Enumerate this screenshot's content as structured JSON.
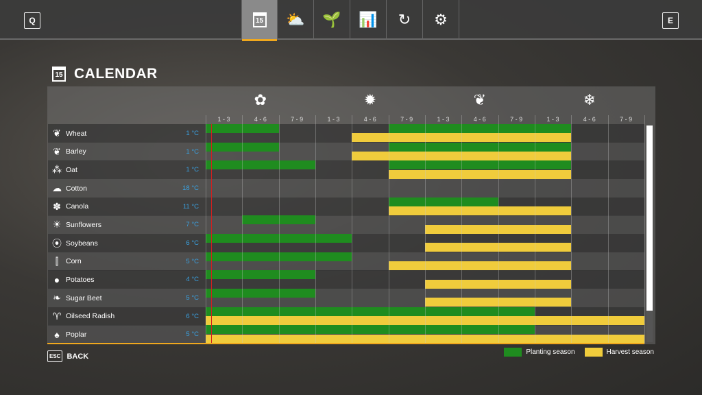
{
  "topbar": {
    "left_key": "Q",
    "right_key": "E",
    "tabs": [
      {
        "icon": "calendar-icon",
        "glyph": "15",
        "active": true
      },
      {
        "icon": "weather-icon",
        "glyph": "⛅"
      },
      {
        "icon": "plant-icon",
        "glyph": "🌱"
      },
      {
        "icon": "statistics-icon",
        "glyph": "📊"
      },
      {
        "icon": "crop-rotation-icon",
        "glyph": "↻"
      },
      {
        "icon": "settings-icon",
        "glyph": "⚙"
      }
    ]
  },
  "page": {
    "title": "CALENDAR",
    "calendar_icon_text": "15"
  },
  "seasons": [
    {
      "name": "spring-icon",
      "glyph": "✿"
    },
    {
      "name": "summer-icon",
      "glyph": "✹"
    },
    {
      "name": "autumn-icon",
      "glyph": "❦"
    },
    {
      "name": "winter-icon",
      "glyph": "❄"
    }
  ],
  "periods": [
    "1 - 3",
    "4 - 6",
    "7 - 9",
    "1 - 3",
    "4 - 6",
    "7 - 9",
    "1 - 3",
    "4 - 6",
    "7 - 9",
    "1 - 3",
    "4 - 6",
    "7 - 9"
  ],
  "colors": {
    "planting": "#1f8c1f",
    "harvest": "#f0cc3c",
    "accent": "#f0a81e",
    "temperature": "#3aa0e0",
    "current_time": "#d02020"
  },
  "chart_data": {
    "type": "bar",
    "note_units": "periods 1-12",
    "crops": [
      {
        "name": "Wheat",
        "icon": "wheat-icon",
        "glyph": "❦",
        "temp": "1 °C",
        "planting": [
          [
            1,
            2
          ],
          [
            6,
            10
          ]
        ],
        "harvest": [
          [
            5,
            10
          ]
        ]
      },
      {
        "name": "Barley",
        "icon": "barley-icon",
        "glyph": "❦",
        "temp": "1 °C",
        "planting": [
          [
            1,
            2
          ],
          [
            6,
            10
          ]
        ],
        "harvest": [
          [
            5,
            10
          ]
        ]
      },
      {
        "name": "Oat",
        "icon": "oat-icon",
        "glyph": "⁂",
        "temp": "1 °C",
        "planting": [
          [
            1,
            3
          ],
          [
            6,
            10
          ]
        ],
        "harvest": [
          [
            6,
            10
          ]
        ]
      },
      {
        "name": "Cotton",
        "icon": "cotton-icon",
        "glyph": "☁",
        "temp": "18 °C",
        "planting": [],
        "harvest": []
      },
      {
        "name": "Canola",
        "icon": "canola-icon",
        "glyph": "✽",
        "temp": "11 °C",
        "planting": [
          [
            6,
            8
          ]
        ],
        "harvest": [
          [
            6,
            10
          ]
        ]
      },
      {
        "name": "Sunflowers",
        "icon": "sunflower-icon",
        "glyph": "☀",
        "temp": "7 °C",
        "planting": [
          [
            2,
            3
          ]
        ],
        "harvest": [
          [
            7,
            10
          ]
        ]
      },
      {
        "name": "Soybeans",
        "icon": "soybean-icon",
        "glyph": "⦿",
        "temp": "6 °C",
        "planting": [
          [
            1,
            4
          ]
        ],
        "harvest": [
          [
            7,
            10
          ]
        ]
      },
      {
        "name": "Corn",
        "icon": "corn-icon",
        "glyph": "⫿",
        "temp": "5 °C",
        "planting": [
          [
            1,
            4
          ]
        ],
        "harvest": [
          [
            6,
            10
          ]
        ]
      },
      {
        "name": "Potatoes",
        "icon": "potato-icon",
        "glyph": "●",
        "temp": "4 °C",
        "planting": [
          [
            1,
            3
          ]
        ],
        "harvest": [
          [
            7,
            10
          ]
        ]
      },
      {
        "name": "Sugar Beet",
        "icon": "sugar-beet-icon",
        "glyph": "❧",
        "temp": "5 °C",
        "planting": [
          [
            1,
            3
          ]
        ],
        "harvest": [
          [
            7,
            10
          ]
        ]
      },
      {
        "name": "Oilseed Radish",
        "icon": "oilseed-radish-icon",
        "glyph": "♈",
        "temp": "6 °C",
        "planting": [
          [
            1,
            9
          ]
        ],
        "harvest": [
          [
            1,
            12
          ]
        ]
      },
      {
        "name": "Poplar",
        "icon": "poplar-icon",
        "glyph": "♠",
        "temp": "5 °C",
        "planting": [
          [
            1,
            9
          ]
        ],
        "harvest": [
          [
            1,
            12
          ]
        ]
      }
    ]
  },
  "footer": {
    "esc": "ESC",
    "back": "BACK",
    "legend_planting": "Planting season",
    "legend_harvest": "Harvest season"
  }
}
